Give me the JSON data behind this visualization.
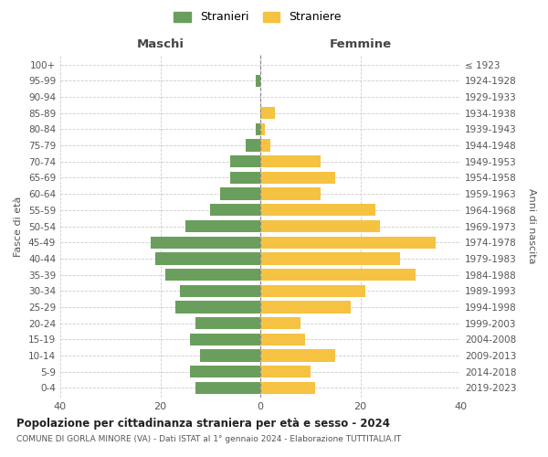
{
  "age_groups": [
    "0-4",
    "5-9",
    "10-14",
    "15-19",
    "20-24",
    "25-29",
    "30-34",
    "35-39",
    "40-44",
    "45-49",
    "50-54",
    "55-59",
    "60-64",
    "65-69",
    "70-74",
    "75-79",
    "80-84",
    "85-89",
    "90-94",
    "95-99",
    "100+"
  ],
  "birth_years": [
    "2019-2023",
    "2014-2018",
    "2009-2013",
    "2004-2008",
    "1999-2003",
    "1994-1998",
    "1989-1993",
    "1984-1988",
    "1979-1983",
    "1974-1978",
    "1969-1973",
    "1964-1968",
    "1959-1963",
    "1954-1958",
    "1949-1953",
    "1944-1948",
    "1939-1943",
    "1934-1938",
    "1929-1933",
    "1924-1928",
    "≤ 1923"
  ],
  "maschi": [
    13,
    14,
    12,
    14,
    13,
    17,
    16,
    19,
    21,
    22,
    15,
    10,
    8,
    6,
    6,
    3,
    1,
    0,
    0,
    1,
    0
  ],
  "femmine": [
    11,
    10,
    15,
    9,
    8,
    18,
    21,
    31,
    28,
    35,
    24,
    23,
    12,
    15,
    12,
    2,
    1,
    3,
    0,
    0,
    0
  ],
  "color_maschi": "#6a9e5c",
  "color_femmine": "#f5c242",
  "title": "Popolazione per cittadinanza straniera per età e sesso - 2024",
  "subtitle": "COMUNE DI GORLA MINORE (VA) - Dati ISTAT al 1° gennaio 2024 - Elaborazione TUTTITALIA.IT",
  "xlabel_maschi": "Maschi",
  "xlabel_femmine": "Femmine",
  "ylabel_left": "Fasce di età",
  "ylabel_right": "Anni di nascita",
  "legend_maschi": "Stranieri",
  "legend_femmine": "Straniere",
  "xlim": 40,
  "background_color": "#ffffff",
  "grid_color": "#cccccc"
}
